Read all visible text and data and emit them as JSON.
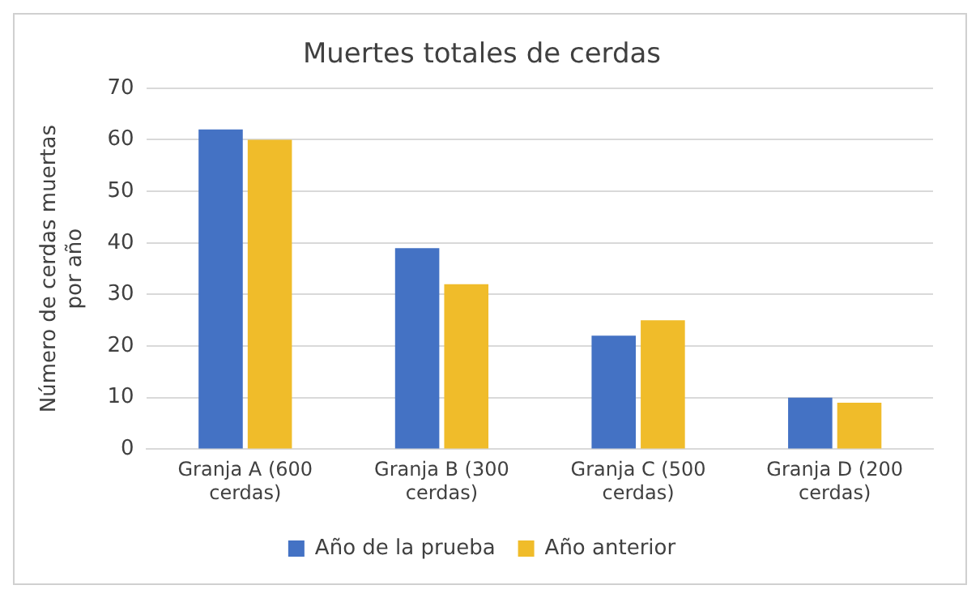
{
  "chart_data": {
    "type": "bar",
    "title": "Muertes totales de cerdas",
    "ylabel": "Número de cerdas muertas por año",
    "categories": [
      "Granja A (600 cerdas)",
      "Granja B (300 cerdas)",
      "Granja C (500 cerdas)",
      "Granja D (200 cerdas)"
    ],
    "series": [
      {
        "name": "Año de la prueba",
        "color": "#4472c4",
        "values": [
          62,
          39,
          22,
          10
        ]
      },
      {
        "name": "Año anterior",
        "color": "#f0bc2a",
        "values": [
          60,
          32,
          25,
          9
        ]
      }
    ],
    "ylim": [
      0,
      70
    ],
    "yticks": [
      0,
      10,
      20,
      30,
      40,
      50,
      60,
      70
    ],
    "grid": "y",
    "legend": "bottom"
  }
}
